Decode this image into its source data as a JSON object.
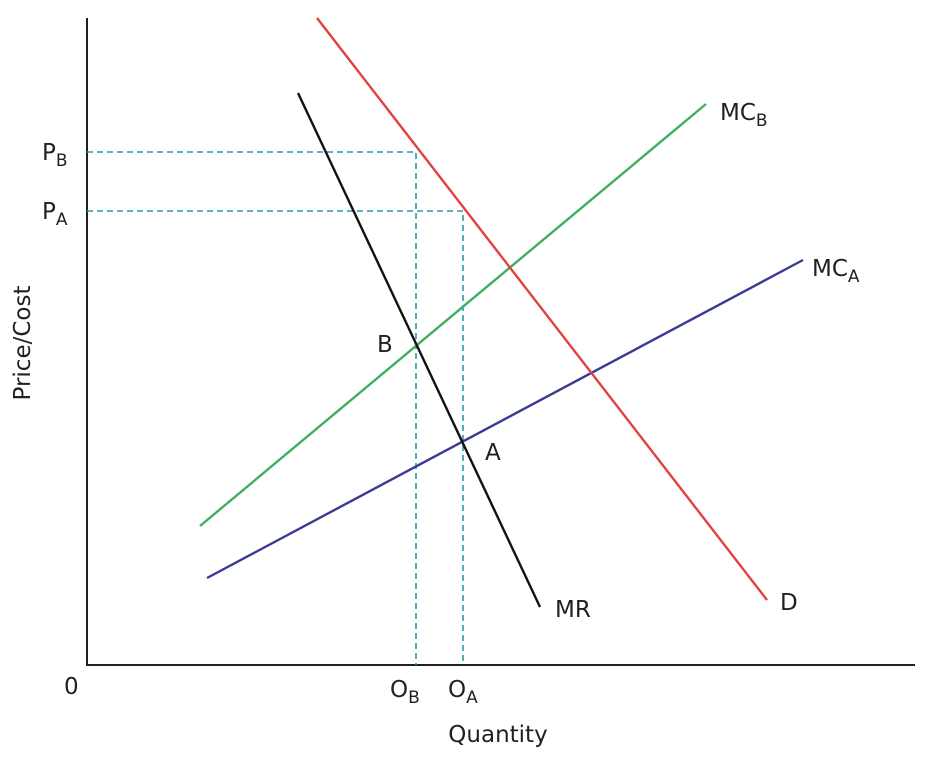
{
  "axes": {
    "y_label": "Price/Cost",
    "x_label": "Quantity",
    "origin": "0"
  },
  "price_levels": [
    {
      "main": "P",
      "sub": "B"
    },
    {
      "main": "P",
      "sub": "A"
    }
  ],
  "quantity_levels": [
    {
      "main": "O",
      "sub": "B"
    },
    {
      "main": "O",
      "sub": "A"
    }
  ],
  "curves": {
    "demand": {
      "label": "D"
    },
    "marginal_revenue": {
      "label": "MR"
    },
    "mc_b": {
      "main": "MC",
      "sub": "B"
    },
    "mc_a": {
      "main": "MC",
      "sub": "A"
    }
  },
  "points": [
    {
      "label": "B"
    },
    {
      "label": "A"
    }
  ]
}
